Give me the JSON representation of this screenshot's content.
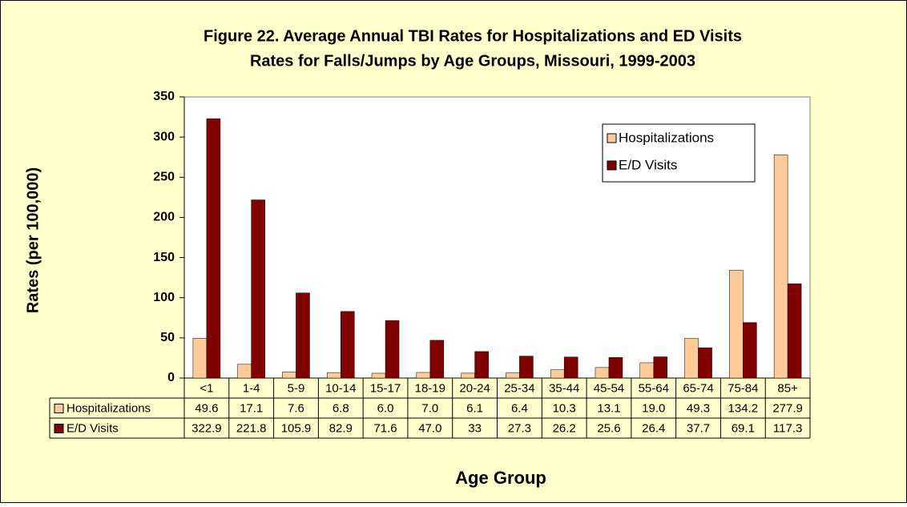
{
  "chart_data": {
    "type": "bar",
    "title": [
      "Figure 22. Average Annual TBI Rates for Hospitalizations and ED Visits",
      "Rates for Falls/Jumps by Age Groups, Missouri, 1999-2003"
    ],
    "x_label": "Age Group",
    "y_label": "Rates (per 100,000)",
    "categories": [
      "<1",
      "1-4",
      "5-9",
      "10-14",
      "15-17",
      "18-19",
      "20-24",
      "25-34",
      "35-44",
      "45-54",
      "55-64",
      "65-74",
      "75-84",
      "85+"
    ],
    "series": [
      {
        "name": "Hospitalizations",
        "color": "#ffcc99",
        "values": [
          49.6,
          17.1,
          7.6,
          6.8,
          6.0,
          7.0,
          6.1,
          6.4,
          10.3,
          13.1,
          19.0,
          49.3,
          134.2,
          277.9
        ],
        "value_labels": [
          "49.6",
          "17.1",
          "7.6",
          "6.8",
          "6.0",
          "7.0",
          "6.1",
          "6.4",
          "10.3",
          "13.1",
          "19.0",
          "49.3",
          "134.2",
          "277.9"
        ]
      },
      {
        "name": "E/D Visits",
        "color": "#800000",
        "values": [
          322.9,
          221.8,
          105.9,
          82.9,
          71.6,
          47.0,
          33,
          27.3,
          26.2,
          25.6,
          26.4,
          37.7,
          69.1,
          117.3
        ],
        "value_labels": [
          "322.9",
          "221.8",
          "105.9",
          "82.9",
          "71.6",
          "47.0",
          "33",
          "27.3",
          "26.2",
          "25.6",
          "26.4",
          "37.7",
          "69.1",
          "117.3"
        ]
      }
    ],
    "ylim": [
      0,
      350
    ],
    "yticks": [
      0,
      50,
      100,
      150,
      200,
      250,
      300,
      350
    ],
    "grid": false,
    "legend": "upper right"
  }
}
